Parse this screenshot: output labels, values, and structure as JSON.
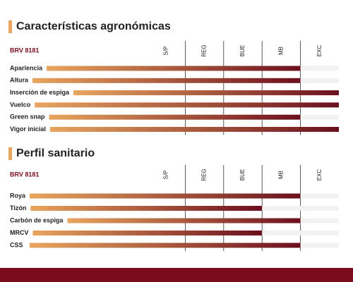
{
  "chart_data": [
    {
      "type": "bar",
      "orientation": "horizontal",
      "title": "Características agronómicas",
      "categories": [
        "Apariencia",
        "Altura",
        "Inserción de espiga",
        "Vuelco",
        "Green snap",
        "Vigor inicial"
      ],
      "series": [
        {
          "name": "BRV 8181",
          "color": [
            "#e8a55e",
            "#6b0f1e"
          ],
          "values": [
            4,
            4,
            5,
            5,
            4,
            5
          ]
        }
      ],
      "xlim": [
        0,
        5
      ],
      "xticks": [
        {
          "value": 1,
          "label": "S/P"
        },
        {
          "value": 2,
          "label": "REG"
        },
        {
          "value": 3,
          "label": "BUE"
        },
        {
          "value": 4,
          "label": "MB"
        },
        {
          "value": 5,
          "label": "EXC"
        }
      ]
    },
    {
      "type": "bar",
      "orientation": "horizontal",
      "title": "Perfil sanitario",
      "categories": [
        "Roya",
        "Tizón",
        "Carbón de espiga",
        "MRCV",
        "CSS"
      ],
      "series": [
        {
          "name": "BRV 8181",
          "color": [
            "#e8a55e",
            "#6b0f1e"
          ],
          "values": [
            4,
            3,
            4,
            3,
            4
          ]
        }
      ],
      "xlim": [
        0,
        5
      ],
      "xticks": [
        {
          "value": 1,
          "label": "S/P"
        },
        {
          "value": 2,
          "label": "REG"
        },
        {
          "value": 3,
          "label": "BUE"
        },
        {
          "value": 4,
          "label": "MB"
        },
        {
          "value": 5,
          "label": "EXC"
        }
      ]
    }
  ]
}
